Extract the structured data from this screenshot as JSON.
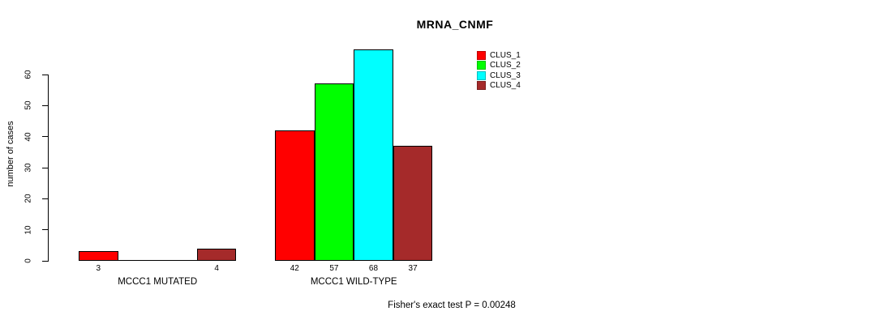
{
  "chart_data": {
    "type": "bar",
    "title": "MRNA_CNMF",
    "xlabel": "",
    "ylabel": "number of cases",
    "ylim": [
      0,
      68
    ],
    "yticks": [
      0,
      10,
      20,
      30,
      40,
      50,
      60
    ],
    "grid": false,
    "legend_position": "top-right",
    "categories": [
      "MCCC1 MUTATED",
      "MCCC1 WILD-TYPE"
    ],
    "series": [
      {
        "name": "CLUS_1",
        "color": "#ff0000",
        "values": [
          3,
          42
        ]
      },
      {
        "name": "CLUS_2",
        "color": "#00ff00",
        "values": [
          0,
          57
        ]
      },
      {
        "name": "CLUS_3",
        "color": "#00ffff",
        "values": [
          0,
          68
        ]
      },
      {
        "name": "CLUS_4",
        "color": "#a52a2a",
        "values": [
          4,
          37
        ]
      }
    ],
    "bar_value_labels": [
      [
        "3",
        "",
        "",
        "4"
      ],
      [
        "42",
        "57",
        "68",
        "37"
      ]
    ],
    "annotation": "Fisher's exact test P = 0.00248"
  }
}
